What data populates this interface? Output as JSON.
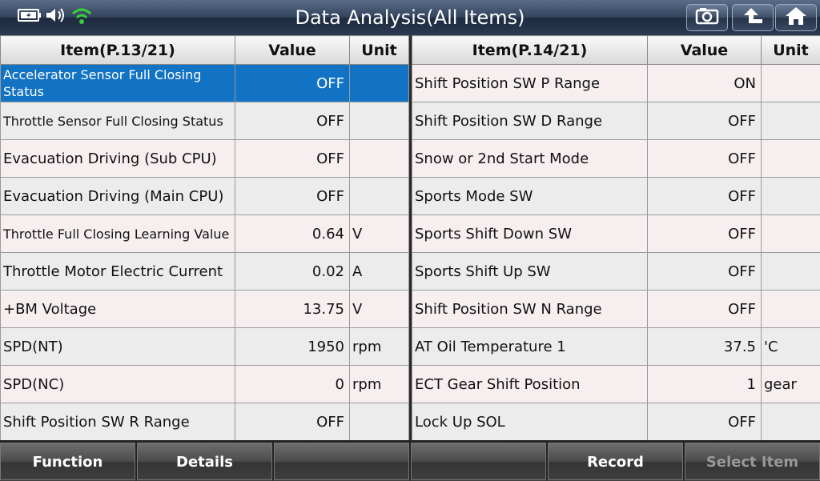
{
  "header": {
    "title": "Data Analysis(All Items)",
    "icons": [
      "battery-icon",
      "speaker-icon",
      "wifi-icon"
    ],
    "buttons": [
      "camera-icon",
      "back-icon",
      "home-icon"
    ]
  },
  "left_table": {
    "headers": [
      "Item(P.13/21)",
      "Value",
      "Unit"
    ],
    "rows": [
      {
        "item": "Accelerator Sensor Full Closing Status",
        "value": "OFF",
        "unit": ""
      },
      {
        "item": "Throttle Sensor Full Closing Status",
        "value": "OFF",
        "unit": ""
      },
      {
        "item": "Evacuation Driving (Sub CPU)",
        "value": "OFF",
        "unit": ""
      },
      {
        "item": "Evacuation Driving (Main CPU)",
        "value": "OFF",
        "unit": ""
      },
      {
        "item": "Throttle Full Closing Learning Value",
        "value": "0.64",
        "unit": "V"
      },
      {
        "item": "Throttle Motor Electric Current",
        "value": "0.02",
        "unit": "A"
      },
      {
        "item": "+BM Voltage",
        "value": "13.75",
        "unit": "V"
      },
      {
        "item": "SPD(NT)",
        "value": "1950",
        "unit": "rpm"
      },
      {
        "item": "SPD(NC)",
        "value": "0",
        "unit": "rpm"
      },
      {
        "item": "Shift Position SW R Range",
        "value": "OFF",
        "unit": ""
      }
    ]
  },
  "right_table": {
    "headers": [
      "Item(P.14/21)",
      "Value",
      "Unit"
    ],
    "rows": [
      {
        "item": "Shift Position SW P Range",
        "value": "ON",
        "unit": ""
      },
      {
        "item": "Shift Position SW D Range",
        "value": "OFF",
        "unit": ""
      },
      {
        "item": "Snow or 2nd Start Mode",
        "value": "OFF",
        "unit": ""
      },
      {
        "item": "Sports Mode SW",
        "value": "OFF",
        "unit": ""
      },
      {
        "item": "Sports Shift Down SW",
        "value": "OFF",
        "unit": ""
      },
      {
        "item": "Sports Shift Up SW",
        "value": "OFF",
        "unit": ""
      },
      {
        "item": "Shift Position SW N Range",
        "value": "OFF",
        "unit": ""
      },
      {
        "item": "AT Oil Temperature 1",
        "value": "37.5",
        "unit": "'C"
      },
      {
        "item": "ECT Gear Shift Position",
        "value": "1",
        "unit": "gear"
      },
      {
        "item": "Lock Up SOL",
        "value": "OFF",
        "unit": ""
      }
    ]
  },
  "footer": {
    "buttons": [
      {
        "label": "Function",
        "enabled": true
      },
      {
        "label": "Details",
        "enabled": true
      },
      {
        "label": "",
        "enabled": true
      },
      {
        "label": "",
        "enabled": true
      },
      {
        "label": "Record",
        "enabled": true
      },
      {
        "label": "Select Item",
        "enabled": false
      }
    ]
  },
  "colors": {
    "selected_row": "#1272c4",
    "wifi": "#35d03a"
  }
}
